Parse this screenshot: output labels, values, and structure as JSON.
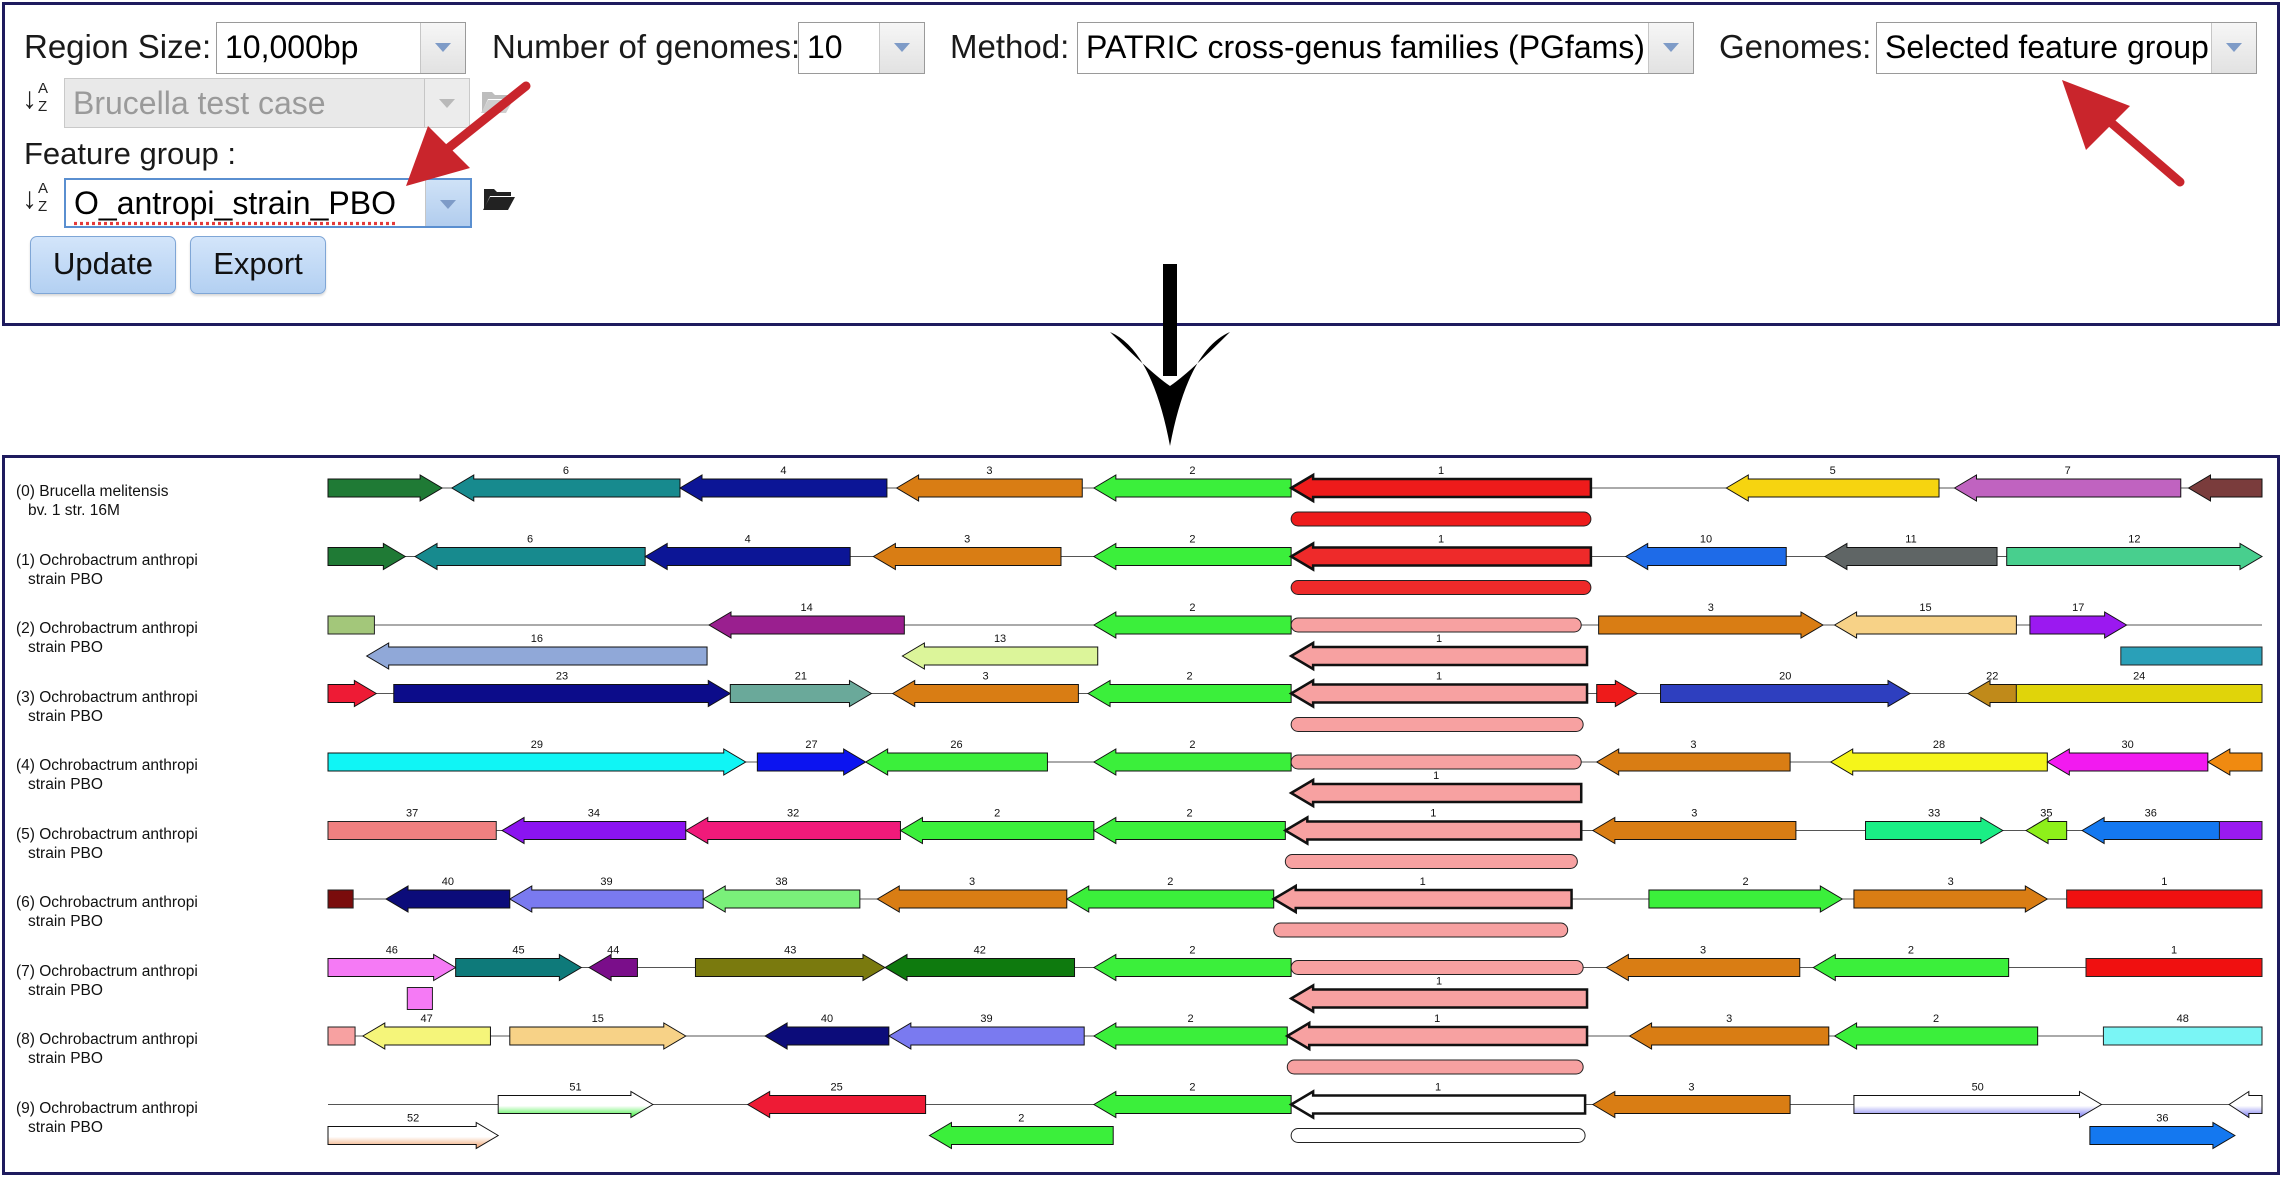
{
  "controls": {
    "region_size_label": "Region Size:",
    "region_size_value": "10,000bp",
    "num_genomes_label": "Number of genomes:",
    "num_genomes_value": "10",
    "method_label": "Method:",
    "method_value": "PATRIC cross-genus families (PGfams)",
    "genomes_label": "Genomes:",
    "genomes_value": "Selected feature group",
    "genome_group_value": "Brucella test case",
    "feature_group_label": "Feature group :",
    "feature_group_value": "O_antropi_strain_PBO",
    "update_label": "Update",
    "export_label": "Export"
  },
  "icons": [
    "sort-az-icon",
    "folder-open-icon",
    "chevron-down-icon",
    "arrow-down-icon",
    "annotation-arrow-icon"
  ],
  "colors": {
    "panel_border": "#1e1b5e",
    "button_blue": "#c3dbf6",
    "annotation_red": "#c9252c"
  },
  "genomes": [
    {
      "line1": "(0) Brucella melitensis",
      "line2": "bv. 1 str. 16M"
    },
    {
      "line1": "(1) Ochrobactrum anthropi",
      "line2": "strain PBO"
    },
    {
      "line1": "(2) Ochrobactrum anthropi",
      "line2": "strain PBO"
    },
    {
      "line1": "(3) Ochrobactrum anthropi",
      "line2": "strain PBO"
    },
    {
      "line1": "(4) Ochrobactrum anthropi",
      "line2": "strain PBO"
    },
    {
      "line1": "(5) Ochrobactrum anthropi",
      "line2": "strain PBO"
    },
    {
      "line1": "(6) Ochrobactrum anthropi",
      "line2": "strain PBO"
    },
    {
      "line1": "(7) Ochrobactrum anthropi",
      "line2": "strain PBO"
    },
    {
      "line1": "(8) Ochrobactrum anthropi",
      "line2": "strain PBO"
    },
    {
      "line1": "(9) Ochrobactrum anthropi",
      "line2": "strain PBO"
    }
  ],
  "genes": [
    [
      {
        "s": 0,
        "e": 0.059,
        "d": "r",
        "c": "#1f7a35",
        "l": ""
      },
      {
        "s": 0.064,
        "e": 0.182,
        "d": "l",
        "c": "#178a8e",
        "l": "6"
      },
      {
        "s": 0.182,
        "e": 0.289,
        "d": "l",
        "c": "#0c1596",
        "l": "4"
      },
      {
        "s": 0.294,
        "e": 0.39,
        "d": "l",
        "c": "#d97d14",
        "l": "3"
      },
      {
        "s": 0.396,
        "e": 0.498,
        "d": "l",
        "c": "#3bef3b",
        "l": "2"
      },
      {
        "s": 0.498,
        "e": 0.653,
        "d": "l",
        "c": "#ee1b1b",
        "l": "1",
        "b": true
      },
      {
        "s": 0.723,
        "e": 0.833,
        "d": "l",
        "c": "#f6d410",
        "l": "5"
      },
      {
        "s": 0.841,
        "e": 0.958,
        "d": "l",
        "c": "#c063c0",
        "l": "7"
      },
      {
        "s": 0.962,
        "e": 1,
        "d": "l",
        "c": "#7a3c3c",
        "l": ""
      },
      {
        "s": 0.498,
        "e": 0.653,
        "d": "n",
        "c": "#ee1b1b",
        "l": "",
        "lane": 1
      }
    ],
    [
      {
        "s": 0,
        "e": 0.04,
        "d": "r",
        "c": "#1f7a35",
        "l": ""
      },
      {
        "s": 0.045,
        "e": 0.164,
        "d": "l",
        "c": "#178a8e",
        "l": "6"
      },
      {
        "s": 0.164,
        "e": 0.27,
        "d": "l",
        "c": "#0c1596",
        "l": "4"
      },
      {
        "s": 0.282,
        "e": 0.379,
        "d": "l",
        "c": "#d97d14",
        "l": "3"
      },
      {
        "s": 0.396,
        "e": 0.498,
        "d": "l",
        "c": "#3bef3b",
        "l": "2"
      },
      {
        "s": 0.498,
        "e": 0.653,
        "d": "l",
        "c": "#ee2a2a",
        "l": "1",
        "b": true
      },
      {
        "s": 0.671,
        "e": 0.754,
        "d": "l",
        "c": "#1e6be8",
        "l": "10"
      },
      {
        "s": 0.774,
        "e": 0.863,
        "d": "l",
        "c": "#5f6565",
        "l": "11"
      },
      {
        "s": 0.868,
        "e": 1,
        "d": "r",
        "c": "#48cf8e",
        "l": "12"
      },
      {
        "s": 0.498,
        "e": 0.653,
        "d": "n",
        "c": "#ee2a2a",
        "l": "",
        "lane": 1
      }
    ],
    [
      {
        "s": 0,
        "e": 0.024,
        "d": "n0",
        "c": "#a3c77a",
        "l": ""
      },
      {
        "s": 0.197,
        "e": 0.298,
        "d": "l",
        "c": "#9a1f8f",
        "l": "14"
      },
      {
        "s": 0.396,
        "e": 0.498,
        "d": "l",
        "c": "#3bef3b",
        "l": "2"
      },
      {
        "s": 0.498,
        "e": 0.648,
        "d": "n",
        "c": "#f7a1a1",
        "l": ""
      },
      {
        "s": 0.657,
        "e": 0.773,
        "d": "r",
        "c": "#d97d14",
        "l": "3"
      },
      {
        "s": 0.779,
        "e": 0.873,
        "d": "l",
        "c": "#f7d287",
        "l": "15"
      },
      {
        "s": 0.88,
        "e": 0.93,
        "d": "r",
        "c": "#9b19f0",
        "l": "17"
      },
      {
        "s": 0.02,
        "e": 0.196,
        "d": "l",
        "c": "#90a8d8",
        "l": "16",
        "lane": 1
      },
      {
        "s": 0.297,
        "e": 0.398,
        "d": "l",
        "c": "#dcf59a",
        "l": "13",
        "lane": 1
      },
      {
        "s": 0.498,
        "e": 0.651,
        "d": "l",
        "c": "#f7a1a1",
        "l": "1",
        "lane": 1,
        "b": true
      },
      {
        "s": 0.927,
        "e": 1,
        "d": "n0",
        "c": "#2aa0b8",
        "l": "",
        "lane": 1
      }
    ],
    [
      {
        "s": 0,
        "e": 0.025,
        "d": "r",
        "c": "#ee1b35",
        "l": ""
      },
      {
        "s": 0.034,
        "e": 0.208,
        "d": "r",
        "c": "#0c0c8a",
        "l": "23"
      },
      {
        "s": 0.208,
        "e": 0.281,
        "d": "r",
        "c": "#6aa99a",
        "l": "21"
      },
      {
        "s": 0.292,
        "e": 0.388,
        "d": "l",
        "c": "#d97d14",
        "l": "3"
      },
      {
        "s": 0.393,
        "e": 0.498,
        "d": "l",
        "c": "#3bef3b",
        "l": "2"
      },
      {
        "s": 0.498,
        "e": 0.651,
        "d": "l",
        "c": "#f7a1a1",
        "l": "1",
        "b": true
      },
      {
        "s": 0.656,
        "e": 0.677,
        "d": "r",
        "c": "#ee1b1b",
        "l": ""
      },
      {
        "s": 0.689,
        "e": 0.818,
        "d": "r",
        "c": "#2e3fbf",
        "l": "20"
      },
      {
        "s": 0.848,
        "e": 0.873,
        "d": "l",
        "c": "#c08a1a",
        "l": "22"
      },
      {
        "s": 0.873,
        "e": 1,
        "d": "n0",
        "c": "#e0d40a",
        "l": "24"
      },
      {
        "s": 0.498,
        "e": 0.649,
        "d": "n",
        "c": "#f7a1a1",
        "l": "",
        "lane": 1
      }
    ],
    [
      {
        "s": 0,
        "e": 0.216,
        "d": "r",
        "c": "#10f5f5",
        "l": "29"
      },
      {
        "s": 0.222,
        "e": 0.278,
        "d": "r",
        "c": "#0c14f0",
        "l": "27"
      },
      {
        "s": 0.278,
        "e": 0.372,
        "d": "l",
        "c": "#3bef3b",
        "l": "26"
      },
      {
        "s": 0.396,
        "e": 0.498,
        "d": "l",
        "c": "#3bef3b",
        "l": "2"
      },
      {
        "s": 0.498,
        "e": 0.648,
        "d": "n",
        "c": "#f7a1a1",
        "l": ""
      },
      {
        "s": 0.656,
        "e": 0.756,
        "d": "l",
        "c": "#d97d14",
        "l": "3"
      },
      {
        "s": 0.777,
        "e": 0.889,
        "d": "l",
        "c": "#f5f51a",
        "l": "28"
      },
      {
        "s": 0.889,
        "e": 0.972,
        "d": "l",
        "c": "#f21af0",
        "l": "30"
      },
      {
        "s": 0.972,
        "e": 1,
        "d": "l",
        "c": "#f08a10",
        "l": ""
      },
      {
        "s": 0.498,
        "e": 0.648,
        "d": "l",
        "c": "#f7a1a1",
        "l": "1",
        "lane": 1,
        "b": true
      }
    ],
    [
      {
        "s": 0,
        "e": 0.087,
        "d": "n0",
        "c": "#f08080",
        "l": "37"
      },
      {
        "s": 0.09,
        "e": 0.185,
        "d": "l",
        "c": "#8b14f0",
        "l": "34"
      },
      {
        "s": 0.185,
        "e": 0.296,
        "d": "l",
        "c": "#f01a7a",
        "l": "32"
      },
      {
        "s": 0.296,
        "e": 0.396,
        "d": "l",
        "c": "#3bef3b",
        "l": "2"
      },
      {
        "s": 0.396,
        "e": 0.495,
        "d": "l",
        "c": "#3bef3b",
        "l": "2"
      },
      {
        "s": 0.495,
        "e": 0.648,
        "d": "l",
        "c": "#f7a1a1",
        "l": "1",
        "b": true
      },
      {
        "s": 0.654,
        "e": 0.759,
        "d": "l",
        "c": "#d97d14",
        "l": "3"
      },
      {
        "s": 0.795,
        "e": 0.866,
        "d": "r",
        "c": "#1aee85",
        "l": "33"
      },
      {
        "s": 0.878,
        "e": 0.899,
        "d": "l",
        "c": "#8ef01a",
        "l": "35"
      },
      {
        "s": 0.907,
        "e": 0.978,
        "d": "l",
        "c": "#1478f0",
        "l": "36"
      },
      {
        "s": 0.978,
        "e": 1,
        "d": "n0",
        "c": "#9a1af0",
        "l": ""
      },
      {
        "s": 0.495,
        "e": 0.646,
        "d": "n",
        "c": "#f7a1a1",
        "l": "",
        "lane": 1
      }
    ],
    [
      {
        "s": 0,
        "e": 0.013,
        "d": "n0",
        "c": "#7a0c0c",
        "l": ""
      },
      {
        "s": 0.03,
        "e": 0.094,
        "d": "l",
        "c": "#0c0c7a",
        "l": "40"
      },
      {
        "s": 0.094,
        "e": 0.194,
        "d": "l",
        "c": "#7a7af0",
        "l": "39"
      },
      {
        "s": 0.194,
        "e": 0.275,
        "d": "l",
        "c": "#7af07a",
        "l": "38"
      },
      {
        "s": 0.284,
        "e": 0.382,
        "d": "l",
        "c": "#d97d14",
        "l": "3"
      },
      {
        "s": 0.382,
        "e": 0.489,
        "d": "l",
        "c": "#3bef3b",
        "l": "2"
      },
      {
        "s": 0.489,
        "e": 0.643,
        "d": "l",
        "c": "#f7a1a1",
        "l": "1",
        "b": true
      },
      {
        "s": 0.683,
        "e": 0.783,
        "d": "r",
        "c": "#3bef3b",
        "l": "2"
      },
      {
        "s": 0.789,
        "e": 0.889,
        "d": "r",
        "c": "#d97d14",
        "l": "3"
      },
      {
        "s": 0.899,
        "e": 1,
        "d": "n0",
        "c": "#f01010",
        "l": "1"
      },
      {
        "s": 0.489,
        "e": 0.641,
        "d": "n",
        "c": "#f7a1a1",
        "l": "",
        "lane": 1
      }
    ],
    [
      {
        "s": 0,
        "e": 0.066,
        "d": "r",
        "c": "#f57af5",
        "l": "46"
      },
      {
        "s": 0.066,
        "e": 0.131,
        "d": "r",
        "c": "#0e7a7a",
        "l": "45"
      },
      {
        "s": 0.135,
        "e": 0.16,
        "d": "l",
        "c": "#7a0e8a",
        "l": "44"
      },
      {
        "s": 0.19,
        "e": 0.288,
        "d": "r",
        "c": "#7a7a0e",
        "l": "43"
      },
      {
        "s": 0.288,
        "e": 0.386,
        "d": "l",
        "c": "#0e7a0e",
        "l": "42"
      },
      {
        "s": 0.396,
        "e": 0.498,
        "d": "l",
        "c": "#3bef3b",
        "l": "2"
      },
      {
        "s": 0.498,
        "e": 0.649,
        "d": "n",
        "c": "#f7a1a1",
        "l": ""
      },
      {
        "s": 0.661,
        "e": 0.761,
        "d": "l",
        "c": "#d97d14",
        "l": "3"
      },
      {
        "s": 0.768,
        "e": 0.869,
        "d": "l",
        "c": "#3bef3b",
        "l": "2"
      },
      {
        "s": 0.909,
        "e": 1,
        "d": "n0",
        "c": "#f01010",
        "l": "1"
      },
      {
        "s": 0.041,
        "e": 0.054,
        "d": "sq",
        "c": "#f57af5",
        "l": "",
        "lane": 1
      },
      {
        "s": 0.498,
        "e": 0.651,
        "d": "l",
        "c": "#f7a1a1",
        "l": "1",
        "lane": 1,
        "b": true
      }
    ],
    [
      {
        "s": 0,
        "e": 0.014,
        "d": "n0",
        "c": "#f7a1a1",
        "l": ""
      },
      {
        "s": 0.018,
        "e": 0.084,
        "d": "l",
        "c": "#f5f57a",
        "l": "47"
      },
      {
        "s": 0.094,
        "e": 0.185,
        "d": "r",
        "c": "#f7d287",
        "l": "15"
      },
      {
        "s": 0.226,
        "e": 0.29,
        "d": "l",
        "c": "#0c0c7a",
        "l": "40"
      },
      {
        "s": 0.29,
        "e": 0.391,
        "d": "l",
        "c": "#7a7af0",
        "l": "39"
      },
      {
        "s": 0.396,
        "e": 0.496,
        "d": "l",
        "c": "#3bef3b",
        "l": "2"
      },
      {
        "s": 0.496,
        "e": 0.651,
        "d": "l",
        "c": "#f7a1a1",
        "l": "1",
        "b": true
      },
      {
        "s": 0.673,
        "e": 0.776,
        "d": "l",
        "c": "#d97d14",
        "l": "3"
      },
      {
        "s": 0.779,
        "e": 0.884,
        "d": "l",
        "c": "#3bef3b",
        "l": "2"
      },
      {
        "s": 0.918,
        "e": 1,
        "d": "n0",
        "c": "#7af5f5",
        "l": "48"
      },
      {
        "s": 0.496,
        "e": 0.649,
        "d": "n",
        "c": "#f7a1a1",
        "l": "",
        "lane": 1
      }
    ],
    [
      {
        "s": 0.088,
        "e": 0.168,
        "d": "r",
        "c": "#ffffff",
        "l": "51",
        "g": "#3bef3b"
      },
      {
        "s": 0.217,
        "e": 0.309,
        "d": "l",
        "c": "#ee1b35",
        "l": "25"
      },
      {
        "s": 0.396,
        "e": 0.498,
        "d": "l",
        "c": "#3bef3b",
        "l": "2"
      },
      {
        "s": 0.498,
        "e": 0.65,
        "d": "l",
        "c": "#ffffff",
        "l": "1",
        "b": true
      },
      {
        "s": 0.654,
        "e": 0.756,
        "d": "l",
        "c": "#d97d14",
        "l": "3"
      },
      {
        "s": 0.789,
        "e": 0.917,
        "d": "r",
        "c": "#ffffff",
        "l": "50",
        "g": "#7a7af0"
      },
      {
        "s": 0.983,
        "e": 1,
        "d": "l",
        "c": "#ffffff",
        "l": "",
        "g": "#7a7af0"
      },
      {
        "s": 0,
        "e": 0.088,
        "d": "r",
        "c": "#ffffff",
        "l": "52",
        "g": "#f0a06a",
        "lane": 1
      },
      {
        "s": 0.311,
        "e": 0.406,
        "d": "l",
        "c": "#3bef3b",
        "l": "2",
        "lane": 1
      },
      {
        "s": 0.498,
        "e": 0.65,
        "d": "n",
        "c": "#ffffff",
        "l": "",
        "lane": 1
      },
      {
        "s": 0.911,
        "e": 0.986,
        "d": "r",
        "c": "#1478f0",
        "l": "36",
        "lane": 1
      }
    ]
  ]
}
